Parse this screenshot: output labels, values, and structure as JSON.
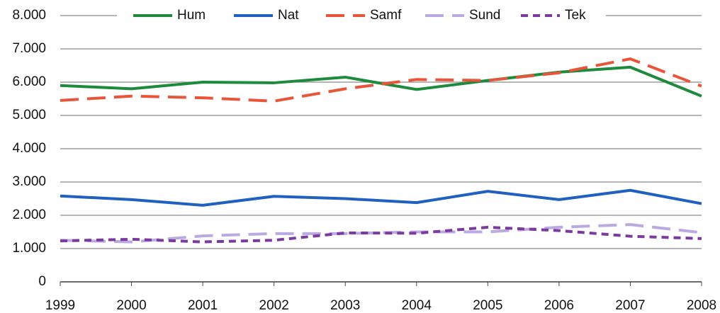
{
  "chart_data": {
    "type": "line",
    "categories": [
      "1999",
      "2000",
      "2001",
      "2002",
      "2003",
      "2004",
      "2005",
      "2006",
      "2007",
      "2008"
    ],
    "series": [
      {
        "name": "Hum",
        "color": "#1e8a3c",
        "dash": "solid",
        "values": [
          5900,
          5800,
          6000,
          5980,
          6150,
          5780,
          6050,
          6300,
          6450,
          5580
        ]
      },
      {
        "name": "Nat",
        "color": "#2060c0",
        "dash": "solid",
        "values": [
          2580,
          2470,
          2300,
          2570,
          2500,
          2380,
          2720,
          2470,
          2750,
          2350
        ]
      },
      {
        "name": "Samf",
        "color": "#e8553a",
        "dash": "long",
        "values": [
          5450,
          5580,
          5530,
          5430,
          5800,
          6080,
          6050,
          6280,
          6700,
          5880
        ]
      },
      {
        "name": "Sund",
        "color": "#bba9e2",
        "dash": "long",
        "values": [
          1250,
          1200,
          1380,
          1450,
          1450,
          1500,
          1500,
          1640,
          1720,
          1480
        ]
      },
      {
        "name": "Tek",
        "color": "#7b3a9e",
        "dash": "short",
        "values": [
          1230,
          1280,
          1200,
          1250,
          1470,
          1460,
          1640,
          1540,
          1370,
          1300
        ]
      }
    ],
    "ylim": [
      0,
      8000
    ],
    "yticks": [
      0,
      {
        "value": 1000,
        "label": "1.000"
      },
      {
        "value": 2000,
        "label": "2.000"
      },
      {
        "value": 3000,
        "label": "3.000"
      },
      {
        "value": 4000,
        "label": "4.000"
      },
      {
        "value": 5000,
        "label": "5.000"
      },
      {
        "value": 6000,
        "label": "6.000"
      },
      {
        "value": 7000,
        "label": "7.000"
      },
      {
        "value": 8000,
        "label": "8.000"
      }
    ],
    "grid": true
  }
}
